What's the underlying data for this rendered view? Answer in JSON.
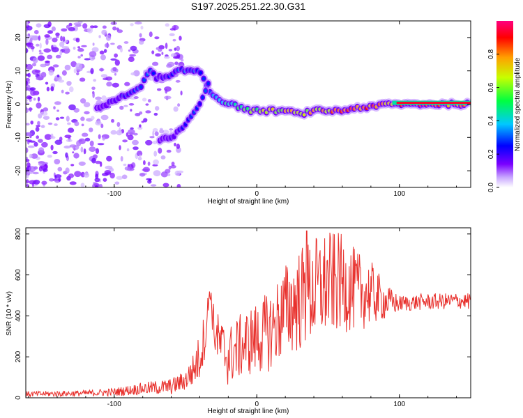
{
  "page_title": "S197.2025.251.22.30.G31",
  "chart_data": [
    {
      "type": "heatmap",
      "name": "spectrogram",
      "title": "S197.2025.251.22.30.G31",
      "xlabel": "Height of straight line (km)",
      "ylabel": "Frequency (Hz)",
      "xlim": [
        -162,
        150
      ],
      "ylim": [
        -25,
        25
      ],
      "xticks": [
        -100,
        0,
        100
      ],
      "yticks": [
        -20,
        -10,
        0,
        10,
        20
      ],
      "xtick_labels": [
        "-100",
        "0",
        "100"
      ],
      "ytick_labels": [
        "-20",
        "-10",
        "0",
        "10",
        "20"
      ],
      "ridge_main": {
        "x": [
          -110,
          -100,
          -90,
          -80,
          -75,
          -70,
          -62,
          -55,
          -48,
          -40,
          -35,
          -32,
          -28,
          -20,
          -10,
          -5,
          0,
          10,
          20,
          30,
          40,
          50,
          60,
          70,
          80,
          90,
          100,
          120,
          150
        ],
        "y": [
          -1,
          1,
          3,
          6,
          10,
          8,
          8,
          10,
          10,
          10,
          6,
          3,
          2,
          0,
          -1,
          -2,
          -2,
          -2,
          -2,
          -3,
          -2,
          -2,
          -2,
          -1,
          -1,
          0,
          0,
          0,
          0
        ],
        "peak_amplitude": [
          0.15,
          0.2,
          0.25,
          0.3,
          0.35,
          0.2,
          0.25,
          0.3,
          0.3,
          0.3,
          0.3,
          0.35,
          0.4,
          0.5,
          0.55,
          0.6,
          0.65,
          0.7,
          0.75,
          0.75,
          0.8,
          0.8,
          0.85,
          0.85,
          0.9,
          0.9,
          0.95,
          0.95,
          0.95
        ]
      },
      "ridge_branch": {
        "x": [
          -68,
          -60,
          -52,
          -44,
          -40,
          -36,
          -33
        ],
        "y": [
          -11,
          -10,
          -7,
          -2,
          0,
          4,
          8
        ],
        "peak_amplitude": [
          0.15,
          0.2,
          0.25,
          0.3,
          0.3,
          0.3,
          0.3
        ]
      },
      "noise_region": "heights below about -90 km show scattered low-amplitude noise across all frequencies"
    },
    {
      "type": "line",
      "name": "snr-trace",
      "xlabel": "Height of straight line (km)",
      "ylabel": "SNR (10 * v/v)",
      "xlim": [
        -162,
        150
      ],
      "ylim": [
        0,
        830
      ],
      "xticks": [
        -100,
        0,
        100
      ],
      "yticks": [
        0,
        200,
        400,
        600,
        800
      ],
      "xtick_labels": [
        "-100",
        "0",
        "100"
      ],
      "ytick_labels": [
        "0",
        "200",
        "400",
        "600",
        "800"
      ],
      "series": [
        {
          "name": "SNR",
          "color": "#e8302c",
          "x": [
            -162,
            -140,
            -120,
            -100,
            -80,
            -60,
            -50,
            -45,
            -40,
            -35,
            -33,
            -30,
            -25,
            -20,
            -10,
            0,
            10,
            20,
            30,
            40,
            50,
            60,
            70,
            80,
            90,
            100,
            110,
            120,
            130,
            140,
            150
          ],
          "y_mean": [
            18,
            20,
            22,
            28,
            45,
            55,
            85,
            130,
            200,
            360,
            540,
            330,
            250,
            200,
            260,
            290,
            330,
            430,
            480,
            520,
            560,
            560,
            520,
            510,
            470,
            460,
            465,
            470,
            470,
            475,
            470
          ],
          "y_swing": [
            14,
            14,
            15,
            20,
            30,
            40,
            50,
            80,
            120,
            120,
            40,
            120,
            140,
            150,
            160,
            180,
            200,
            230,
            260,
            270,
            260,
            240,
            200,
            160,
            90,
            40,
            40,
            40,
            40,
            40,
            40
          ],
          "peak_value": 815,
          "peak_x": 35
        }
      ]
    }
  ],
  "colorbar": {
    "label": "Normalized spectral amplitude",
    "range": [
      0,
      1
    ],
    "ticks": [
      0.0,
      0.2,
      0.4,
      0.6,
      0.8
    ],
    "tick_labels": [
      "0.0",
      "0.2",
      "0.4",
      "0.6",
      "0.8"
    ],
    "colors": [
      "#ffffff",
      "#7a00ff",
      "#0000ff",
      "#00c8ff",
      "#00ff40",
      "#c8ff00",
      "#ffa000",
      "#ff0000",
      "#ff0080"
    ]
  }
}
